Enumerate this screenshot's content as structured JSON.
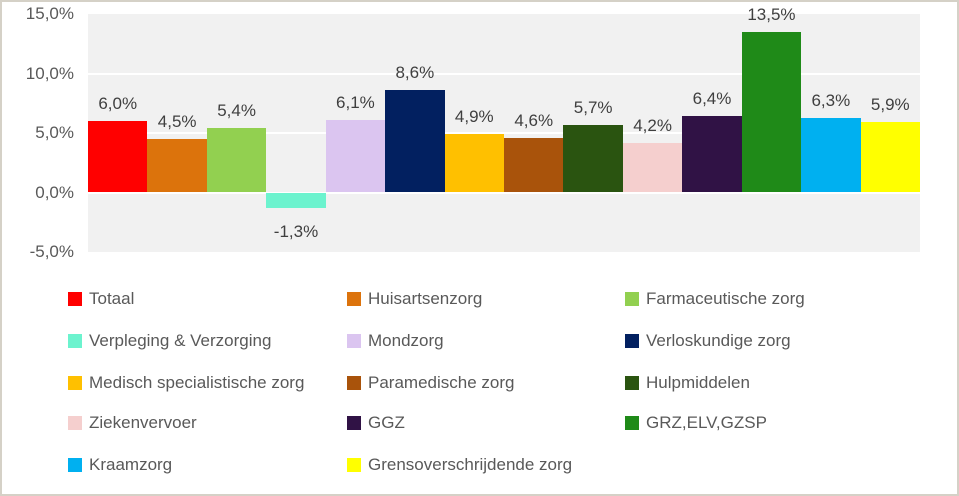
{
  "chart_data": {
    "type": "bar",
    "title": "",
    "xlabel": "",
    "ylabel": "",
    "ylim": [
      -5,
      15
    ],
    "grid": true,
    "gridline_color": "#ffffff",
    "plot_background": "#f1f1f1",
    "legend_position": "bottom",
    "value_format": "percent-comma-decimal",
    "yticks": [
      {
        "value": 15,
        "label": "15,0%"
      },
      {
        "value": 10,
        "label": "10,0%"
      },
      {
        "value": 5,
        "label": "5,0%"
      },
      {
        "value": 0,
        "label": "0,0%"
      },
      {
        "value": -5,
        "label": "-5,0%"
      }
    ],
    "series": [
      {
        "name": "Totaal",
        "value": 6.0,
        "label": "6,0%",
        "color": "#ff0000"
      },
      {
        "name": "Huisartsenzorg",
        "value": 4.5,
        "label": "4,5%",
        "color": "#dc730c"
      },
      {
        "name": "Farmaceutische zorg",
        "value": 5.4,
        "label": "5,4%",
        "color": "#92d050"
      },
      {
        "name": "Verpleging & Verzorging",
        "value": -1.3,
        "label": "-1,3%",
        "color": "#6cf3ce"
      },
      {
        "name": "Mondzorg",
        "value": 6.1,
        "label": "6,1%",
        "color": "#dbc5f0"
      },
      {
        "name": "Verloskundige zorg",
        "value": 8.6,
        "label": "8,6%",
        "color": "#022060"
      },
      {
        "name": "Medisch specialistische zorg",
        "value": 4.9,
        "label": "4,9%",
        "color": "#ffc000"
      },
      {
        "name": "Paramedische zorg",
        "value": 4.6,
        "label": "4,6%",
        "color": "#a9530b"
      },
      {
        "name": "Hulpmiddelen",
        "value": 5.7,
        "label": "5,7%",
        "color": "#2a5410"
      },
      {
        "name": "Ziekenvervoer",
        "value": 4.2,
        "label": "4,2%",
        "color": "#f5cfce"
      },
      {
        "name": "GGZ",
        "value": 6.4,
        "label": "6,4%",
        "color": "#301245"
      },
      {
        "name": "GRZ,ELV,GZSP",
        "value": 13.5,
        "label": "13,5%",
        "color": "#1f8a18"
      },
      {
        "name": "Kraamzorg",
        "value": 6.3,
        "label": "6,3%",
        "color": "#00b0f0"
      },
      {
        "name": "Grensoverschrijdende zorg",
        "value": 5.9,
        "label": "5,9%",
        "color": "#ffff00"
      }
    ]
  },
  "colors": {
    "axis_text": "#595959",
    "data_label_text": "#3f3f3f",
    "legend_text": "#595959",
    "frame_border": "#d5d1c7"
  }
}
